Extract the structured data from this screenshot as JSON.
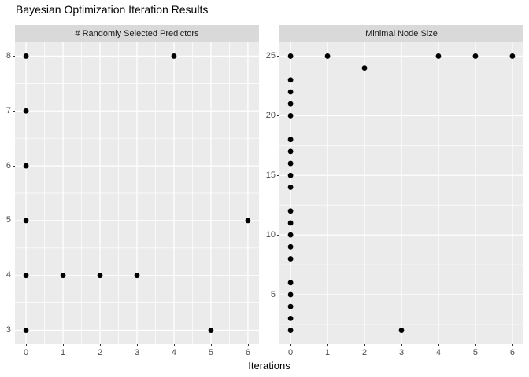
{
  "title": "Bayesian Optimization Iteration Results",
  "xlabel": "Iterations",
  "colors": {
    "background": "#FFFFFF",
    "panel_bg": "#EBEBEB",
    "strip_bg": "#D9D9D9",
    "gridline": "#FFFFFF",
    "point": "#000000",
    "tick_text": "#4D4D4D",
    "tick_mark": "#333333",
    "title_text": "#000000"
  },
  "chart_data": [
    {
      "type": "scatter",
      "title": "# Randomly Selected Predictors",
      "xlabel": "Iterations",
      "ylabel": "",
      "points": [
        [
          0,
          3
        ],
        [
          0,
          4
        ],
        [
          0,
          5
        ],
        [
          0,
          6
        ],
        [
          0,
          7
        ],
        [
          0,
          8
        ],
        [
          1,
          4
        ],
        [
          2,
          4
        ],
        [
          3,
          4
        ],
        [
          4,
          8
        ],
        [
          5,
          3
        ],
        [
          6,
          5
        ]
      ],
      "xlim": [
        -0.3,
        6.3
      ],
      "ylim": [
        2.75,
        8.25
      ],
      "x_ticks": [
        0,
        1,
        2,
        3,
        4,
        5,
        6
      ],
      "y_ticks": [
        3,
        4,
        5,
        6,
        7,
        8
      ],
      "grid": "on",
      "legend": "none"
    },
    {
      "type": "scatter",
      "title": "Minimal Node Size",
      "xlabel": "Iterations",
      "ylabel": "",
      "points": [
        [
          0,
          2
        ],
        [
          0,
          3
        ],
        [
          0,
          4
        ],
        [
          0,
          5
        ],
        [
          0,
          6
        ],
        [
          0,
          8
        ],
        [
          0,
          9
        ],
        [
          0,
          10
        ],
        [
          0,
          11
        ],
        [
          0,
          12
        ],
        [
          0,
          14
        ],
        [
          0,
          15
        ],
        [
          0,
          16
        ],
        [
          0,
          17
        ],
        [
          0,
          18
        ],
        [
          0,
          20
        ],
        [
          0,
          21
        ],
        [
          0,
          22
        ],
        [
          0,
          23
        ],
        [
          0,
          25
        ],
        [
          1,
          25
        ],
        [
          2,
          24
        ],
        [
          3,
          2
        ],
        [
          4,
          25
        ],
        [
          5,
          25
        ],
        [
          6,
          25
        ]
      ],
      "xlim": [
        -0.3,
        6.3
      ],
      "ylim": [
        0.85,
        26.15
      ],
      "x_ticks": [
        0,
        1,
        2,
        3,
        4,
        5,
        6
      ],
      "y_ticks": [
        5,
        10,
        15,
        20,
        25
      ],
      "grid": "on",
      "legend": "none"
    }
  ]
}
